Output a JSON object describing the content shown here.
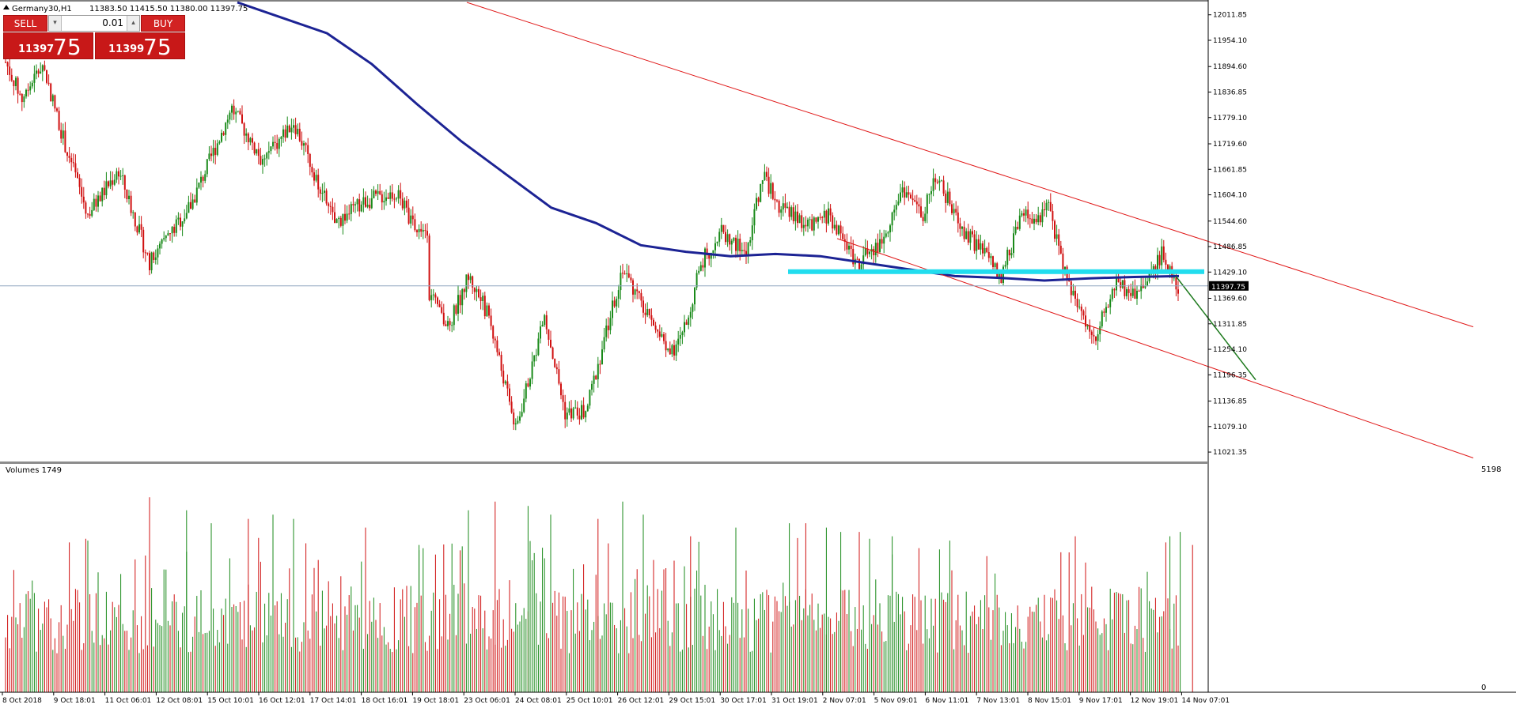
{
  "header": {
    "symbol": "Germany30,H1",
    "ohlc": "11383.50 11415.50 11380.00 11397.75"
  },
  "trade_panel": {
    "sell_label": "SELL",
    "buy_label": "BUY",
    "lot_value": "0.01",
    "sell_price_small": "11397",
    "sell_price_big": "75",
    "buy_price_small": "11399",
    "buy_price_big": "75"
  },
  "volume_panel": {
    "title": "Volumes 1749",
    "max_label": "5198",
    "min_label": "0"
  },
  "colors": {
    "bull": "#1a8a1a",
    "bear": "#d01010",
    "ma": "#1c2394",
    "channel": "#e01818",
    "support": "#22ddee",
    "projection": "#1e7a1e",
    "bid_line": "#8fa5bf"
  },
  "chart_data": {
    "type": "candlestick",
    "symbol": "Germany30",
    "timeframe": "H1",
    "last_price": 11397.75,
    "last_price_label": "11397.75",
    "ylim": [
      11000,
      12040
    ],
    "y_ticks": [
      {
        "v": 12011.85,
        "label": "12011.85"
      },
      {
        "v": 11954.1,
        "label": "11954.10"
      },
      {
        "v": 11894.6,
        "label": "11894.60"
      },
      {
        "v": 11836.85,
        "label": "11836.85"
      },
      {
        "v": 11779.1,
        "label": "11779.10"
      },
      {
        "v": 11719.6,
        "label": "11719.60"
      },
      {
        "v": 11661.85,
        "label": "11661.85"
      },
      {
        "v": 11604.1,
        "label": "11604.10"
      },
      {
        "v": 11544.6,
        "label": "11544.60"
      },
      {
        "v": 11486.85,
        "label": "11486.85"
      },
      {
        "v": 11429.1,
        "label": "11429.10"
      },
      {
        "v": 11369.6,
        "label": "11369.60"
      },
      {
        "v": 11311.85,
        "label": "11311.85"
      },
      {
        "v": 11254.1,
        "label": "11254.10"
      },
      {
        "v": 11196.35,
        "label": "11196.35"
      },
      {
        "v": 11136.85,
        "label": "11136.85"
      },
      {
        "v": 11079.1,
        "label": "11079.10"
      },
      {
        "v": 11021.35,
        "label": "11021.35"
      }
    ],
    "x_labels": [
      "8 Oct 2018",
      "9 Oct 18:01",
      "11 Oct 06:01",
      "12 Oct 08:01",
      "15 Oct 10:01",
      "16 Oct 12:01",
      "17 Oct 14:01",
      "18 Oct 16:01",
      "19 Oct 18:01",
      "23 Oct 06:01",
      "24 Oct 08:01",
      "25 Oct 10:01",
      "26 Oct 12:01",
      "29 Oct 15:01",
      "30 Oct 17:01",
      "31 Oct 19:01",
      "2 Nov 07:01",
      "5 Nov 09:01",
      "6 Nov 11:01",
      "7 Nov 13:01",
      "8 Nov 15:01",
      "9 Nov 17:01",
      "12 Nov 19:01",
      "14 Nov 07:01"
    ],
    "bar_count": 400,
    "price_anchors": [
      [
        0,
        11905
      ],
      [
        8,
        11820
      ],
      [
        18,
        11900
      ],
      [
        30,
        11700
      ],
      [
        40,
        11560
      ],
      [
        55,
        11660
      ],
      [
        70,
        11450
      ],
      [
        90,
        11580
      ],
      [
        110,
        11800
      ],
      [
        125,
        11680
      ],
      [
        140,
        11770
      ],
      [
        160,
        11540
      ],
      [
        175,
        11590
      ],
      [
        190,
        11610
      ],
      [
        200,
        11520
      ],
      [
        205,
        11530
      ],
      [
        206,
        11380
      ],
      [
        215,
        11300
      ],
      [
        225,
        11420
      ],
      [
        235,
        11330
      ],
      [
        248,
        11070
      ],
      [
        262,
        11330
      ],
      [
        272,
        11110
      ],
      [
        282,
        11110
      ],
      [
        300,
        11440
      ],
      [
        315,
        11300
      ],
      [
        325,
        11240
      ],
      [
        332,
        11330
      ],
      [
        338,
        11450
      ],
      [
        348,
        11520
      ],
      [
        360,
        11470
      ],
      [
        368,
        11650
      ],
      [
        376,
        11580
      ],
      [
        392,
        11530
      ],
      [
        400,
        11560
      ],
      [
        414,
        11450
      ],
      [
        425,
        11490
      ],
      [
        436,
        11620
      ],
      [
        446,
        11560
      ],
      [
        452,
        11650
      ],
      [
        466,
        11520
      ],
      [
        478,
        11460
      ],
      [
        484,
        11420
      ],
      [
        494,
        11560
      ],
      [
        502,
        11540
      ],
      [
        506,
        11600
      ],
      [
        514,
        11440
      ],
      [
        524,
        11320
      ],
      [
        530,
        11290
      ],
      [
        540,
        11400
      ],
      [
        548,
        11380
      ],
      [
        556,
        11410
      ],
      [
        562,
        11470
      ],
      [
        571,
        11390
      ],
      [
        575,
        11310
      ],
      [
        578,
        11400
      ]
    ],
    "moving_average": [
      [
        11905,
        12040
      ],
      [
        11925,
        12005
      ],
      [
        11945,
        11970
      ],
      [
        11960,
        11900
      ],
      [
        11980,
        11810
      ],
      [
        11995,
        11725
      ],
      [
        12010,
        11650
      ],
      [
        12030,
        11575
      ],
      [
        12048,
        11540
      ],
      [
        12065,
        11490
      ],
      [
        12080,
        11475
      ],
      [
        12100,
        11465
      ],
      [
        12120,
        11470
      ],
      [
        12140,
        11465
      ],
      [
        12160,
        11450
      ],
      [
        12180,
        11435
      ],
      [
        12200,
        11420
      ],
      [
        12220,
        11416
      ],
      [
        12235,
        11410
      ],
      [
        12250,
        11415
      ],
      [
        12262,
        11418
      ],
      [
        12271,
        11420
      ]
    ],
    "support_level": {
      "value": 11430,
      "from": "31 Oct 19:01",
      "to": "14 Nov 07:01"
    },
    "channel_upper": [
      {
        "t": "9 Oct 18:01",
        "v": 12075
      },
      {
        "t": "14 Nov 07:01",
        "v": 11270
      }
    ],
    "channel_lower": [
      {
        "t": "2 Nov 07:01",
        "v": 11500
      },
      {
        "t": "14 Nov 07:01",
        "v": 11000
      }
    ],
    "projection": [
      {
        "t": "14 Nov 07:01",
        "v": 11420
      },
      {
        "t": "14 Nov 07:01",
        "v": 11185
      }
    ],
    "volume_max": 5198,
    "volume_spikes": [
      [
        40,
        3500
      ],
      [
        70,
        4500
      ],
      [
        88,
        4200
      ],
      [
        100,
        3900
      ],
      [
        118,
        4000
      ],
      [
        130,
        4100
      ],
      [
        140,
        4000
      ],
      [
        175,
        3800
      ],
      [
        201,
        3400
      ],
      [
        225,
        4200
      ],
      [
        238,
        4400
      ],
      [
        254,
        4300
      ],
      [
        265,
        4100
      ],
      [
        288,
        4000
      ],
      [
        300,
        4400
      ],
      [
        310,
        4100
      ],
      [
        333,
        3600
      ],
      [
        355,
        3800
      ],
      [
        381,
        3900
      ],
      [
        389,
        3900
      ],
      [
        399,
        3800
      ],
      [
        406,
        3700
      ],
      [
        415,
        3700
      ],
      [
        431,
        3600
      ],
      [
        459,
        3500
      ],
      [
        520,
        3600
      ],
      [
        566,
        3600
      ],
      [
        571,
        3700
      ],
      [
        577,
        3400
      ]
    ]
  }
}
